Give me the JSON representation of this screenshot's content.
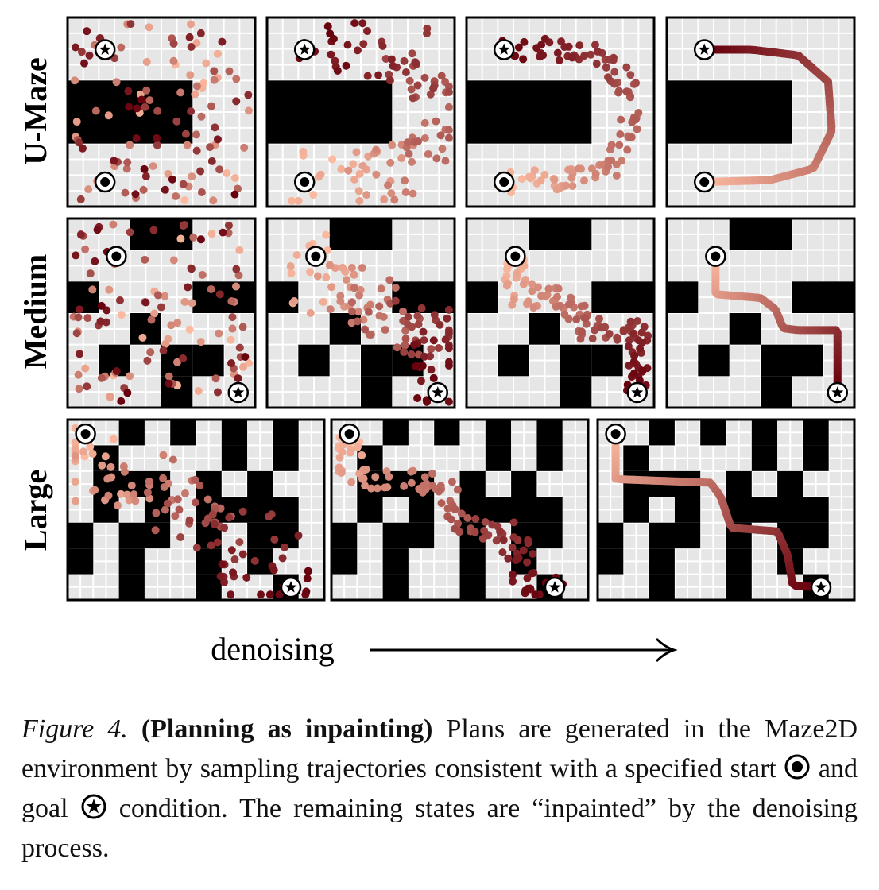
{
  "rows": [
    {
      "label": "U-Maze",
      "maze": "umaze"
    },
    {
      "label": "Medium",
      "maze": "medium"
    },
    {
      "label": "Large",
      "maze": "large"
    }
  ],
  "denoising_label": "denoising",
  "caption": {
    "figure_label": "Figure 4.",
    "title": "(Planning as inpainting)",
    "text_1": "Plans are generated in the Maze2D environment by sampling trajectories consistent with a specified start",
    "text_2": "and goal",
    "text_3": "condition. The remaining states are “inpainted” by the denoising process."
  },
  "icons": [
    "start-marker-icon",
    "goal-marker-icon",
    "arrow-right-icon"
  ],
  "colors": {
    "wall": "#000000",
    "floor": "#e6e6e6",
    "grid": "#ffffff",
    "trajectory_start": "#fcbba1",
    "trajectory_end": "#67000d"
  }
}
